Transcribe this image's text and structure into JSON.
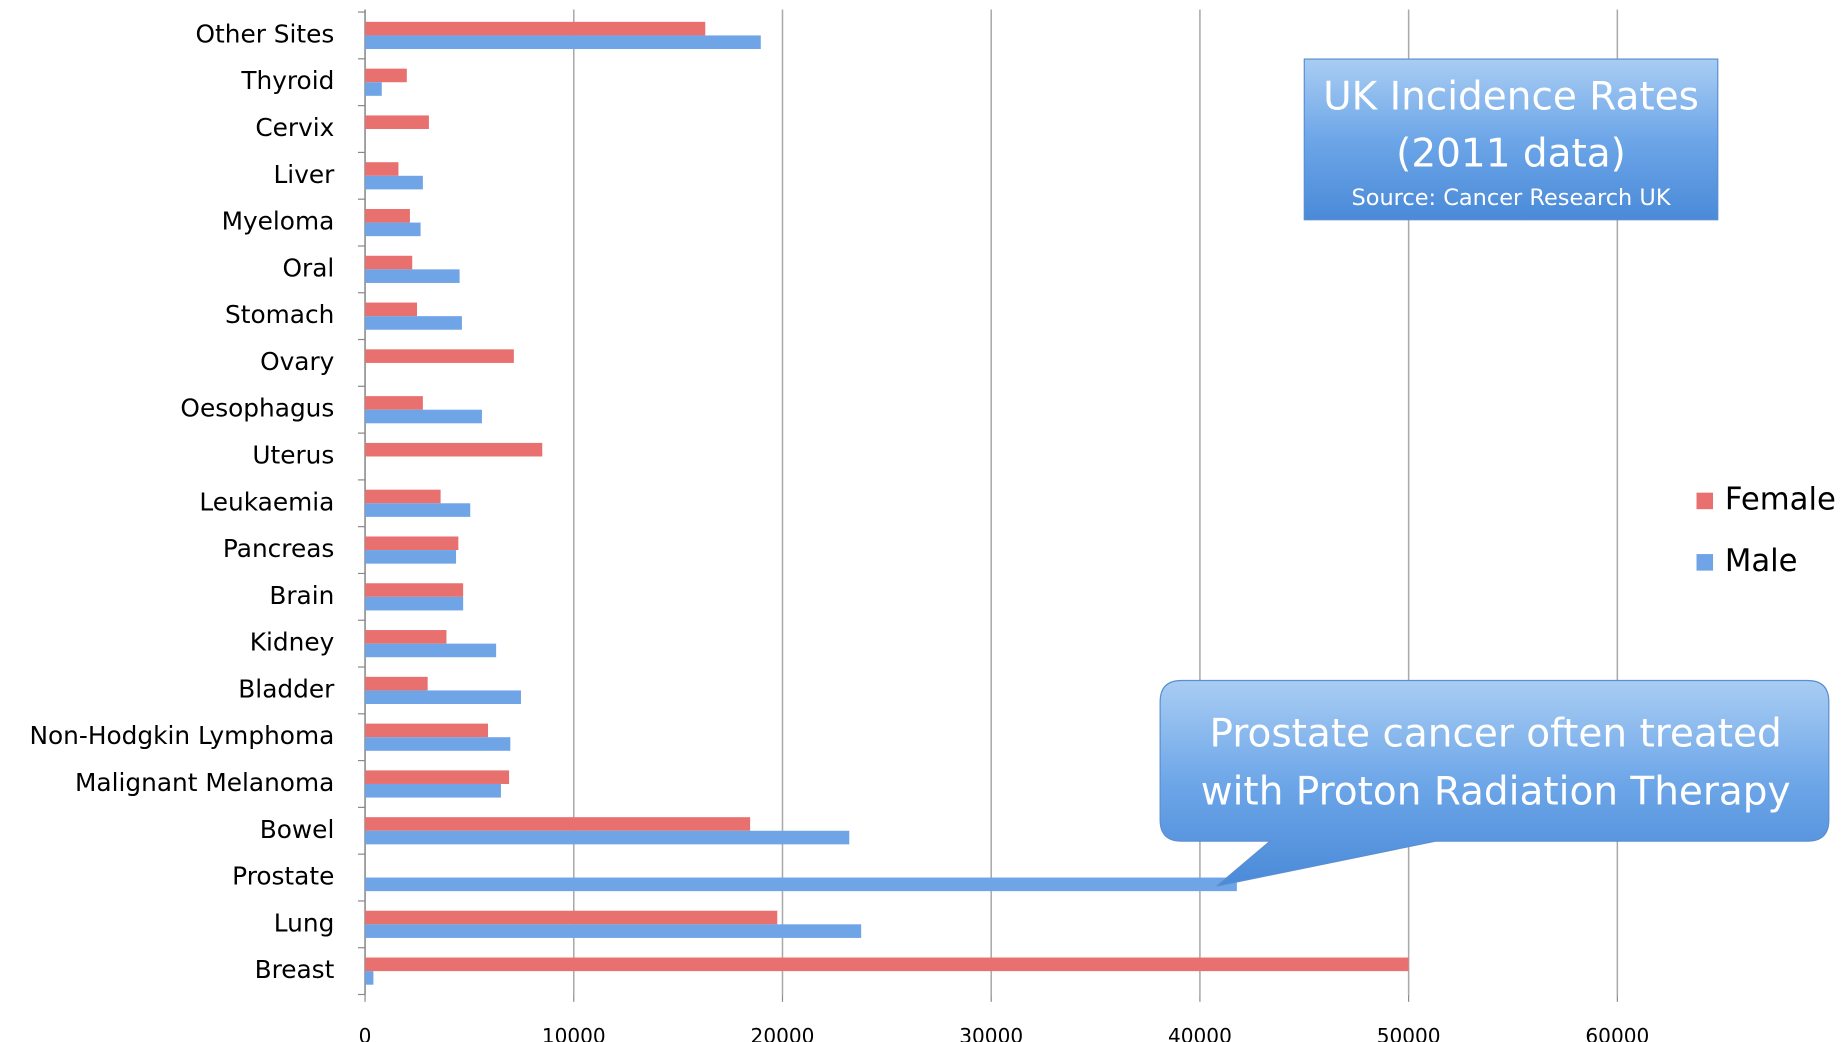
{
  "chart_data": {
    "type": "hbar",
    "title": [
      "UK Incidence Rates",
      "(2011 data)"
    ],
    "subtitle": "Source: Cancer Research UK",
    "annotation": [
      "Prostate cancer often treated",
      "with Proton Radiation Therapy"
    ],
    "categories": [
      "Other Sites",
      "Thyroid",
      "Cervix",
      "Liver",
      "Myeloma",
      "Oral",
      "Stomach",
      "Ovary",
      "Oesophagus",
      "Uterus",
      "Leukaemia",
      "Pancreas",
      "Brain",
      "Kidney",
      "Bladder",
      "Non-Hodgkin Lymphoma",
      "Malignant Melanoma",
      "Bowel",
      "Prostate",
      "Lung",
      "Breast"
    ],
    "series": [
      {
        "name": "Female",
        "color": "#e8716f",
        "values": [
          16300,
          2000,
          3060,
          1600,
          2150,
          2260,
          2490,
          7130,
          2770,
          8490,
          3620,
          4470,
          4700,
          3900,
          3000,
          5890,
          6900,
          18450,
          null,
          19750,
          50000
        ]
      },
      {
        "name": "Male",
        "color": "#6fa4e6",
        "values": [
          18960,
          800,
          null,
          2770,
          2660,
          4530,
          4640,
          null,
          5600,
          null,
          5040,
          4360,
          4700,
          6280,
          7470,
          6960,
          6510,
          23200,
          41770,
          23770,
          400
        ]
      }
    ],
    "xlim": [
      0,
      60000
    ],
    "xticks": [
      0,
      10000,
      20000,
      30000,
      40000,
      50000,
      60000
    ],
    "grid": true,
    "legend": "right"
  }
}
